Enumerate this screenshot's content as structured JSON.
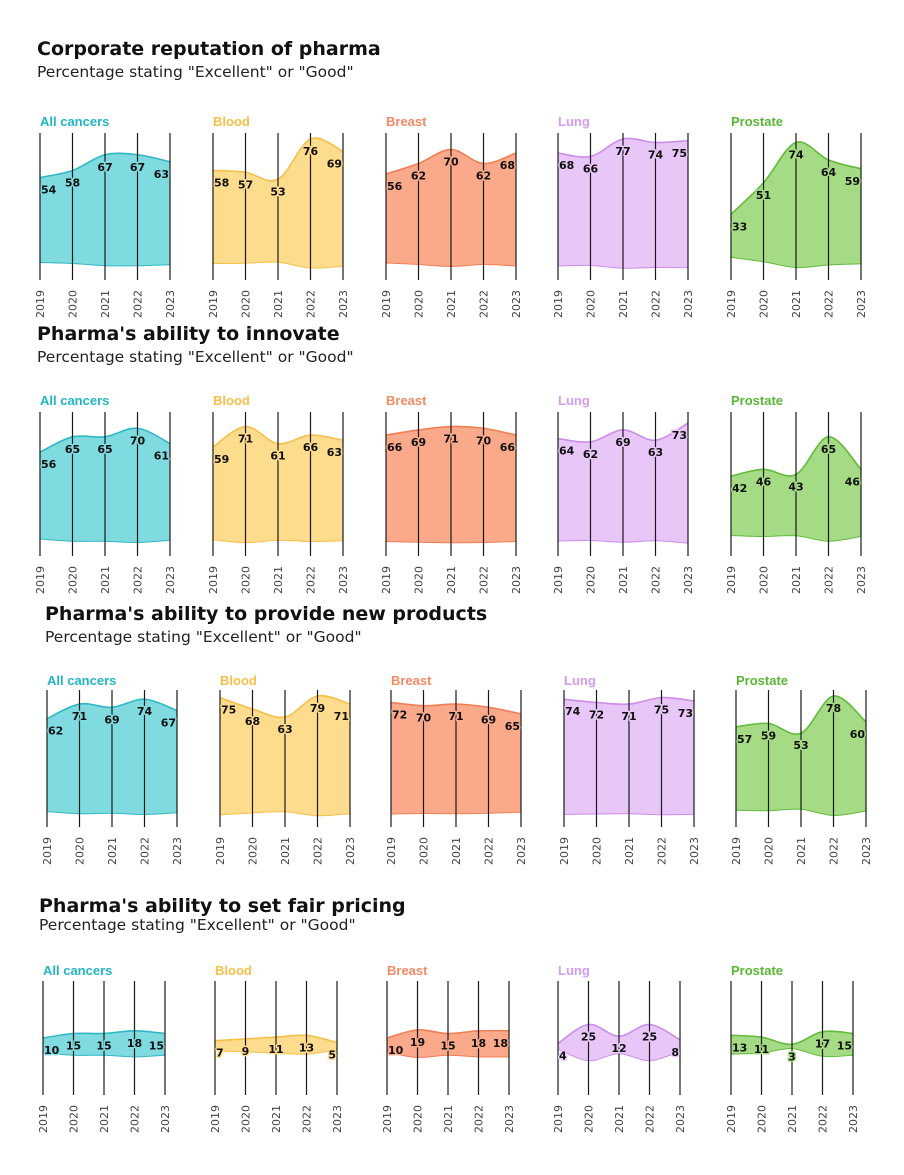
{
  "chart_data": [
    {
      "type": "area",
      "title": "Corporate reputation of pharma",
      "subtitle": "Percentage stating \"Excellent\" or \"Good\"",
      "x": [
        "2019",
        "2020",
        "2021",
        "2022",
        "2023"
      ],
      "series": [
        {
          "name": "All cancers",
          "values": [
            54,
            58,
            67,
            67,
            63
          ]
        },
        {
          "name": "Blood",
          "values": [
            58,
            57,
            53,
            76,
            69
          ]
        },
        {
          "name": "Breast",
          "values": [
            56,
            62,
            70,
            62,
            68
          ]
        },
        {
          "name": "Lung",
          "values": [
            68,
            66,
            77,
            74,
            75
          ]
        },
        {
          "name": "Prostate",
          "values": [
            33,
            51,
            74,
            64,
            59
          ]
        }
      ]
    },
    {
      "type": "area",
      "title": "Pharma's ability to innovate",
      "subtitle": "Percentage stating \"Excellent\" or \"Good\"",
      "x": [
        "2019",
        "2020",
        "2021",
        "2022",
        "2023"
      ],
      "series": [
        {
          "name": "All cancers",
          "values": [
            56,
            65,
            65,
            70,
            61
          ]
        },
        {
          "name": "Blood",
          "values": [
            59,
            71,
            61,
            66,
            63
          ]
        },
        {
          "name": "Breast",
          "values": [
            66,
            69,
            71,
            70,
            66
          ]
        },
        {
          "name": "Lung",
          "values": [
            64,
            62,
            69,
            63,
            73
          ]
        },
        {
          "name": "Prostate",
          "values": [
            42,
            46,
            43,
            65,
            46
          ]
        }
      ]
    },
    {
      "type": "area",
      "title": "Pharma's ability to provide new products",
      "subtitle": "Percentage stating \"Excellent\" or \"Good\"",
      "x": [
        "2019",
        "2020",
        "2021",
        "2022",
        "2023"
      ],
      "series": [
        {
          "name": "All cancers",
          "values": [
            62,
            71,
            69,
            74,
            67
          ]
        },
        {
          "name": "Blood",
          "values": [
            75,
            68,
            63,
            79,
            71
          ]
        },
        {
          "name": "Breast",
          "values": [
            72,
            70,
            71,
            69,
            65
          ]
        },
        {
          "name": "Lung",
          "values": [
            74,
            72,
            71,
            75,
            73
          ]
        },
        {
          "name": "Prostate",
          "values": [
            57,
            59,
            53,
            78,
            60
          ]
        }
      ]
    },
    {
      "type": "area",
      "title": "Pharma's ability to set fair pricing",
      "subtitle": "Percentage stating \"Excellent\" or \"Good\"",
      "x": [
        "2019",
        "2020",
        "2021",
        "2022",
        "2023"
      ],
      "series": [
        {
          "name": "All cancers",
          "values": [
            10,
            15,
            15,
            18,
            15
          ]
        },
        {
          "name": "Blood",
          "values": [
            7,
            9,
            11,
            13,
            5
          ]
        },
        {
          "name": "Breast",
          "values": [
            10,
            19,
            15,
            18,
            18
          ]
        },
        {
          "name": "Lung",
          "values": [
            4,
            25,
            12,
            25,
            8
          ]
        },
        {
          "name": "Prostate",
          "values": [
            13,
            11,
            3,
            17,
            15
          ]
        }
      ]
    }
  ],
  "colors": {
    "All cancers": {
      "fill": "#7fdbe0",
      "stroke": "#2fb8c4",
      "label": "#22b5c3"
    },
    "Blood": {
      "fill": "#fddc8e",
      "stroke": "#f5c04a",
      "label": "#f5c04a"
    },
    "Breast": {
      "fill": "#fba98b",
      "stroke": "#ef7f56",
      "label": "#f28b64"
    },
    "Lung": {
      "fill": "#e8c6f8",
      "stroke": "#cc8de8",
      "label": "#d49cee"
    },
    "Prostate": {
      "fill": "#a5db84",
      "stroke": "#62bb3b",
      "label": "#5ab536"
    }
  }
}
